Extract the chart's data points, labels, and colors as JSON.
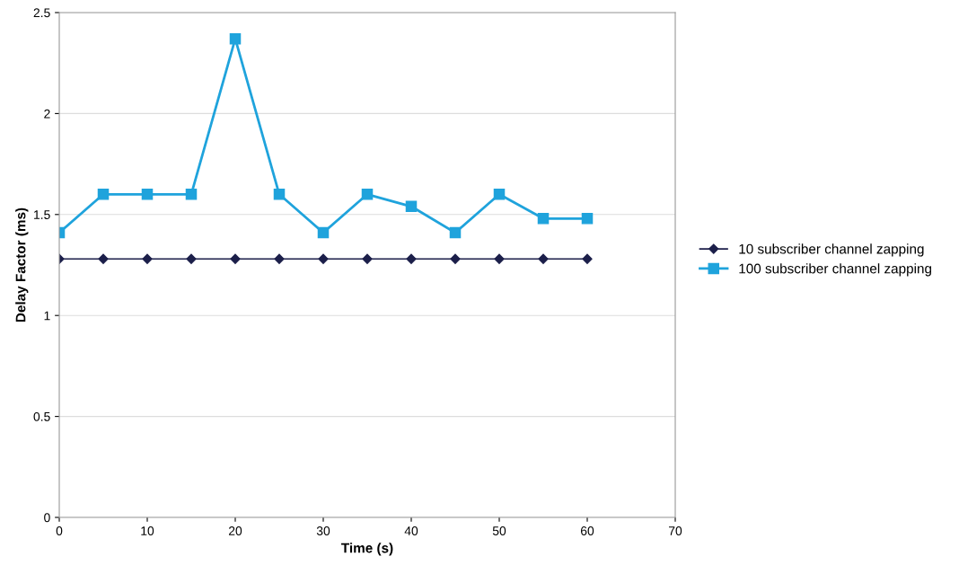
{
  "chart_data": {
    "type": "line",
    "xlabel": "Time (s)",
    "ylabel": "Delay Factor (ms)",
    "x": [
      0,
      5,
      10,
      15,
      20,
      25,
      30,
      35,
      40,
      45,
      50,
      55,
      60
    ],
    "series": [
      {
        "name": "10 subscriber channel zapping",
        "color": "#1c1f4a",
        "marker": "diamond",
        "values": [
          1.28,
          1.28,
          1.28,
          1.28,
          1.28,
          1.28,
          1.28,
          1.28,
          1.28,
          1.28,
          1.28,
          1.28,
          1.28
        ]
      },
      {
        "name": "100 subscriber channel zapping",
        "color": "#1fa3dc",
        "marker": "square",
        "values": [
          1.41,
          1.6,
          1.6,
          1.6,
          2.37,
          1.6,
          1.41,
          1.6,
          1.54,
          1.41,
          1.6,
          1.48,
          1.48
        ]
      }
    ],
    "xlim": [
      0,
      70
    ],
    "xticks": [
      0,
      10,
      20,
      30,
      40,
      50,
      60,
      70
    ],
    "ylim": [
      0,
      2.5
    ],
    "yticks": [
      0,
      0.5,
      1,
      1.5,
      2,
      2.5
    ],
    "grid": "y",
    "legend": "right",
    "line_style": "solid"
  }
}
